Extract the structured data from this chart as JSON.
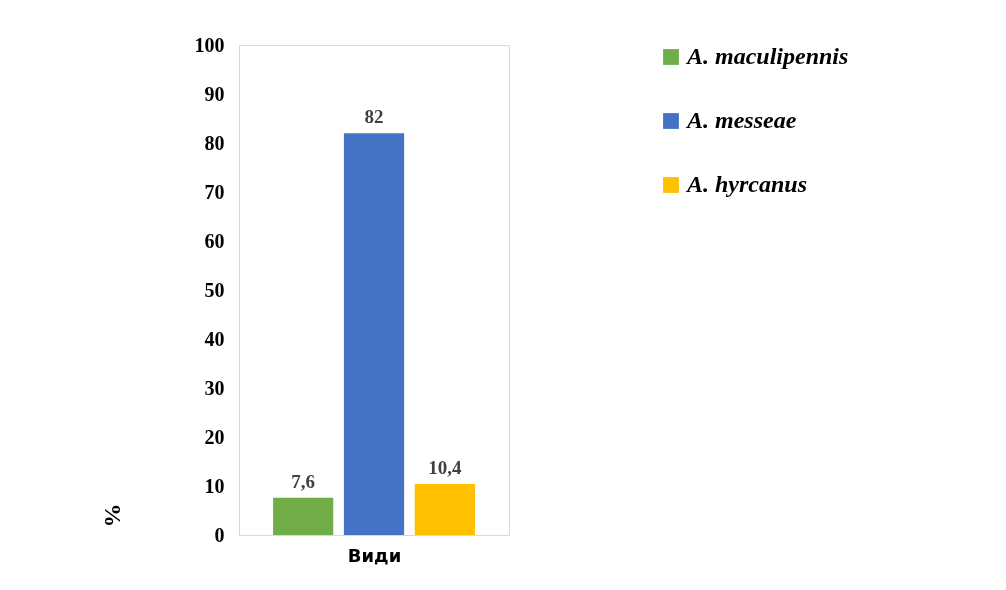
{
  "chart_data": {
    "type": "bar",
    "xlabel": "Види",
    "ylabel": "%",
    "categories": [
      null
    ],
    "series": [
      {
        "name": "A. maculipennis",
        "color": "#70ad47",
        "values": [
          7.6
        ],
        "value_labels": [
          "7,6"
        ]
      },
      {
        "name": "A. messeae",
        "color": "#4472c4",
        "values": [
          82
        ],
        "value_labels": [
          "82"
        ]
      },
      {
        "name": "A. hyrcanus",
        "color": "#ffc000",
        "values": [
          10.4
        ],
        "value_labels": [
          "10,4"
        ]
      }
    ],
    "ylim": [
      0,
      100
    ],
    "yticks": [
      0,
      10,
      20,
      30,
      40,
      50,
      60,
      70,
      80,
      90,
      100
    ],
    "tick_labels": "y",
    "grid": false,
    "legend": "right"
  }
}
